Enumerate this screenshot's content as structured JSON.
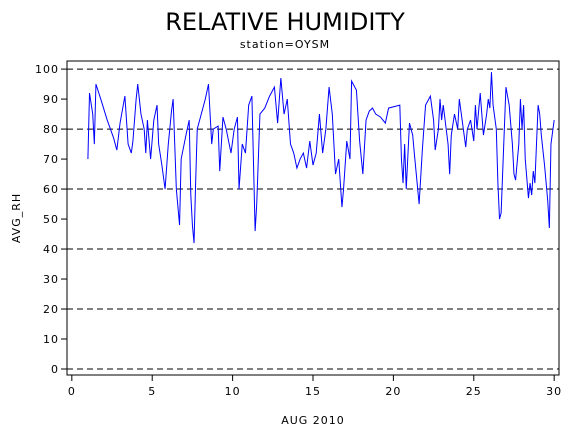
{
  "chart_data": {
    "type": "line",
    "title": "RELATIVE HUMIDITY",
    "subtitle": "station=OYSM",
    "x_label": "AUG 2010",
    "y_label": "AVG_RH",
    "xlim": [
      -0.3,
      30.3
    ],
    "ylim": [
      -2,
      102.7
    ],
    "xticks": [
      0,
      5,
      10,
      15,
      20,
      25,
      30
    ],
    "yticks": [
      0,
      10,
      20,
      30,
      40,
      50,
      60,
      70,
      80,
      90,
      100
    ],
    "grid_values": [
      0,
      20,
      40,
      60,
      80,
      100
    ],
    "series": [
      {
        "color": "#0000ff",
        "x": [
          1.0,
          1.1,
          1.3,
          1.4,
          1.5,
          1.8,
          2.2,
          2.6,
          2.8,
          3.0,
          3.3,
          3.5,
          3.7,
          3.8,
          4.0,
          4.1,
          4.3,
          4.5,
          4.6,
          4.7,
          4.9,
          5.1,
          5.3,
          5.4,
          5.6,
          5.8,
          6.0,
          6.2,
          6.3,
          6.5,
          6.7,
          6.8,
          7.1,
          7.3,
          7.4,
          7.5,
          7.6,
          7.7,
          7.8,
          8.0,
          8.3,
          8.5,
          8.7,
          8.8,
          9.1,
          9.2,
          9.4,
          9.6,
          9.9,
          10.1,
          10.3,
          10.4,
          10.6,
          10.8,
          11.0,
          11.2,
          11.4,
          11.5,
          11.7,
          12.0,
          12.3,
          12.6,
          12.8,
          13.0,
          13.2,
          13.4,
          13.6,
          13.8,
          14.0,
          14.2,
          14.4,
          14.6,
          14.8,
          15.0,
          15.2,
          15.4,
          15.6,
          15.8,
          16.0,
          16.2,
          16.4,
          16.6,
          16.8,
          16.9,
          17.1,
          17.3,
          17.4,
          17.7,
          17.9,
          18.1,
          18.3,
          18.5,
          18.7,
          18.9,
          19.2,
          19.5,
          19.7,
          20.4,
          20.5,
          20.6,
          20.7,
          20.8,
          21.0,
          21.2,
          21.3,
          21.6,
          21.8,
          22.0,
          22.3,
          22.5,
          22.6,
          22.8,
          22.9,
          23.0,
          23.1,
          23.4,
          23.5,
          23.6,
          23.8,
          24.0,
          24.1,
          24.4,
          24.5,
          24.6,
          24.8,
          25.0,
          25.1,
          25.2,
          25.4,
          25.6,
          25.8,
          25.9,
          26.0,
          26.1,
          26.2,
          26.4,
          26.5,
          26.6,
          26.7,
          26.9,
          27.0,
          27.2,
          27.4,
          27.5,
          27.6,
          27.8,
          27.9,
          28.0,
          28.1,
          28.2,
          28.4,
          28.5,
          28.6,
          28.7,
          28.8,
          29.0,
          29.1,
          29.2,
          29.4,
          29.6,
          29.7,
          29.8,
          30.0
        ],
        "values": [
          70,
          92,
          85,
          75,
          95,
          90,
          83,
          77,
          73,
          82,
          91,
          75,
          72,
          76,
          90,
          95,
          85,
          80,
          72,
          83,
          70,
          83,
          88,
          75,
          68,
          60,
          75,
          86,
          90,
          60,
          48,
          70,
          78,
          83,
          58,
          48,
          42,
          62,
          80,
          84,
          90,
          95,
          75,
          80,
          81,
          66,
          84,
          80,
          72,
          80,
          84,
          60,
          75,
          72,
          88,
          91,
          46,
          55,
          85,
          87,
          91,
          94,
          82,
          97,
          85,
          90,
          75,
          72,
          67,
          70,
          72,
          67,
          76,
          68,
          72,
          85,
          72,
          80,
          94,
          85,
          65,
          70,
          54,
          60,
          76,
          70,
          96,
          93,
          76,
          65,
          83,
          86,
          87,
          85,
          84,
          82,
          87,
          88,
          70,
          62,
          75,
          60,
          82,
          78,
          72,
          55,
          73,
          88,
          91,
          83,
          73,
          80,
          90,
          83,
          88,
          75,
          65,
          78,
          85,
          80,
          90,
          78,
          74,
          80,
          83,
          76,
          88,
          80,
          92,
          78,
          85,
          90,
          87,
          99,
          88,
          80,
          62,
          50,
          52,
          80,
          94,
          88,
          75,
          65,
          63,
          75,
          90,
          80,
          88,
          70,
          57,
          62,
          58,
          66,
          62,
          88,
          85,
          78,
          68,
          56,
          47,
          75,
          83
        ]
      }
    ]
  }
}
